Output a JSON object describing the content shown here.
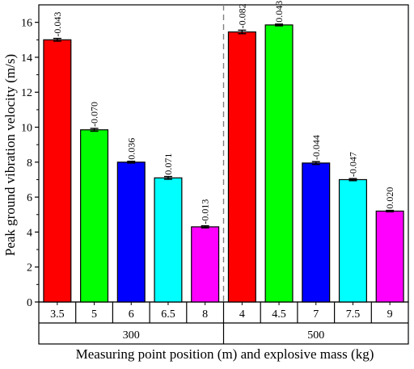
{
  "chart_data": {
    "type": "bar",
    "ylabel": "Peak ground vibration velocity (m/s)",
    "xlabel": "Measuring point position (m) and explosive mass (kg)",
    "ylim": [
      0,
      17
    ],
    "yticks": [
      0,
      2,
      4,
      6,
      8,
      10,
      12,
      14,
      16
    ],
    "grid": false,
    "error_bars": true,
    "groups": [
      {
        "label": "300",
        "categories": [
          "3.5",
          "5",
          "6",
          "6.5",
          "8"
        ],
        "values": [
          15.0,
          9.85,
          8.0,
          7.1,
          4.3
        ],
        "errors": [
          0.08,
          0.08,
          0.05,
          0.08,
          0.06
        ],
        "labels": [
          "-0.043",
          "-0.070",
          "0.036",
          "0.071",
          "-0.013"
        ],
        "colors": [
          "#ff0000",
          "#00ff00",
          "#0000ff",
          "#00ffff",
          "#ff00ff"
        ]
      },
      {
        "label": "500",
        "categories": [
          "4",
          "4.5",
          "7",
          "7.5",
          "9"
        ],
        "values": [
          15.45,
          15.85,
          7.95,
          7.0,
          5.2
        ],
        "errors": [
          0.1,
          0.05,
          0.08,
          0.06,
          0.04
        ],
        "labels": [
          "-0.082",
          "0.043",
          "-0.044",
          "-0.047",
          "0.020"
        ],
        "colors": [
          "#ff0000",
          "#00ff00",
          "#0000ff",
          "#00ffff",
          "#ff00ff"
        ]
      }
    ]
  }
}
